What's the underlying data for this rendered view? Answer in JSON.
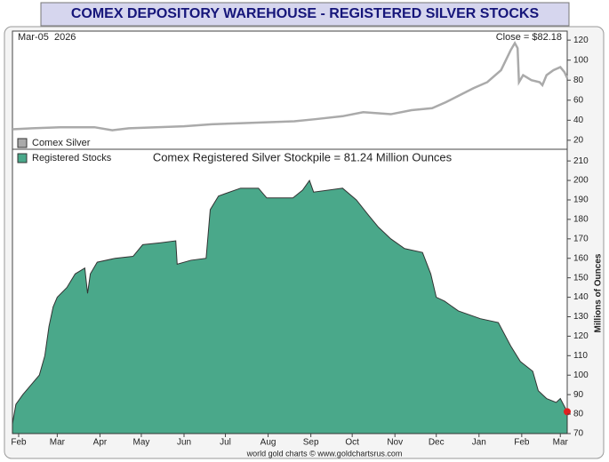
{
  "chart_data": [
    {
      "type": "line",
      "title": "COMEX DEPOSITORY WAREHOUSE - REGISTERED SILVER STOCKS",
      "annotations": [
        "Mar-05  2026",
        "Close = $82.18"
      ],
      "footer": "world gold charts © www.goldchartsrus.com",
      "xlim": [
        -4.5,
        398
      ],
      "ylim": [
        11,
        129
      ],
      "yticks": [
        20,
        40,
        60,
        80,
        100,
        120
      ],
      "legend": "bottom-left",
      "series": [
        {
          "name": "Comex Silver",
          "color": "#aaaaaa",
          "x": [
            -4.5,
            10,
            30,
            55,
            68,
            80,
            100,
            120,
            140,
            160,
            180,
            200,
            215,
            235,
            250,
            260,
            270,
            285,
            300,
            310,
            320,
            330,
            340,
            350,
            357,
            360,
            362,
            363,
            366,
            372,
            378,
            380,
            383,
            388,
            393,
            396,
            398
          ],
          "values": [
            31,
            32,
            33,
            33,
            30,
            32,
            33,
            34,
            36,
            37,
            38,
            39,
            41,
            44,
            48,
            47,
            46,
            50,
            52,
            58,
            65,
            72,
            78,
            90,
            110,
            117,
            112,
            78,
            85,
            80,
            78,
            75,
            85,
            90,
            93,
            88,
            82.18
          ]
        }
      ]
    },
    {
      "type": "area",
      "subtitle": "Comex Registered Silver Stockpile = 81.24 Million Ounces",
      "ylabel": "Millions of Ounces",
      "xlim": [
        -4.5,
        398
      ],
      "xticks": [
        {
          "value": 0,
          "label": "Feb"
        },
        {
          "value": 28,
          "label": "Mar"
        },
        {
          "value": 59,
          "label": "Apr"
        },
        {
          "value": 89,
          "label": "May"
        },
        {
          "value": 120,
          "label": "Jun"
        },
        {
          "value": 150,
          "label": "Jul"
        },
        {
          "value": 181,
          "label": "Aug"
        },
        {
          "value": 212,
          "label": "Sep"
        },
        {
          "value": 242,
          "label": "Oct"
        },
        {
          "value": 273,
          "label": "Nov"
        },
        {
          "value": 303,
          "label": "Dec"
        },
        {
          "value": 334,
          "label": "Jan"
        },
        {
          "value": 365,
          "label": "Feb"
        },
        {
          "value": 393,
          "label": "Mar"
        }
      ],
      "ylim": [
        70,
        216
      ],
      "yticks": [
        70,
        80,
        90,
        100,
        110,
        120,
        130,
        140,
        150,
        160,
        170,
        180,
        190,
        200,
        210
      ],
      "legend": "top-left",
      "series": [
        {
          "name": "Registered Stocks",
          "color": "#4aa88a",
          "x": [
            -4.5,
            -2,
            3,
            9,
            15,
            19,
            22,
            25,
            28,
            35,
            41,
            48,
            50,
            52,
            57,
            70,
            83,
            90,
            103,
            114,
            115,
            125,
            136,
            139,
            145,
            161,
            174,
            180,
            199,
            206,
            211,
            214,
            235,
            245,
            254,
            261,
            270,
            280,
            293,
            299,
            303,
            309,
            319,
            335,
            348,
            357,
            364,
            373,
            377,
            383,
            390,
            393,
            398
          ],
          "values": [
            75,
            85,
            90,
            95,
            100,
            110,
            125,
            135,
            140,
            145,
            152,
            155,
            142,
            152,
            158,
            160,
            161,
            167,
            168,
            169,
            157,
            159,
            160,
            185,
            192,
            196,
            196,
            191,
            191,
            195,
            200,
            194,
            196,
            190,
            182,
            176,
            170,
            165,
            163,
            152,
            140,
            138,
            133,
            129,
            127,
            115,
            107,
            102,
            92,
            88,
            86,
            88,
            81.24
          ]
        }
      ]
    }
  ]
}
